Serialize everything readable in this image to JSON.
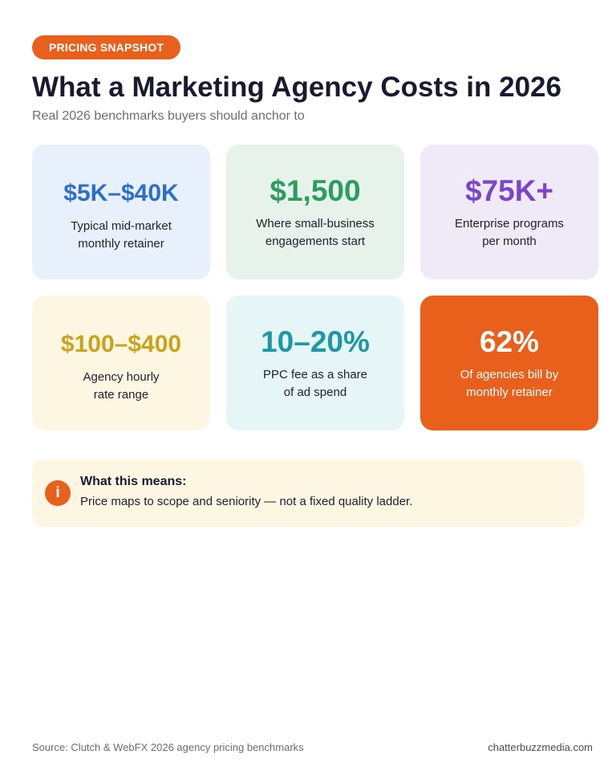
{
  "badge": "PRICING SNAPSHOT",
  "title": "What a Marketing Agency Costs in 2026",
  "subtitle": "Real 2026 benchmarks buyers should anchor to",
  "cards": [
    {
      "value": "$5K–$40K",
      "label_line1": "Typical mid-market",
      "label_line2": "monthly retainer",
      "color": "#2d6fcb",
      "bg": "#e7f0fb"
    },
    {
      "value": "$1,500",
      "label_line1": "Where small-business",
      "label_line2": "engagements start",
      "color": "#2e9b62",
      "bg": "#e7f2ea"
    },
    {
      "value": "$75K+",
      "label_line1": "Enterprise programs",
      "label_line2": "per month",
      "color": "#7a46c8",
      "bg": "#efe9f8"
    },
    {
      "value": "$100–$400",
      "label_line1": "Agency hourly",
      "label_line2": "rate range",
      "color": "#c9a21e",
      "bg": "#fcf6e3"
    },
    {
      "value": "10–20%",
      "label_line1": "PPC fee as a share",
      "label_line2": "of ad spend",
      "color": "#1d98a4",
      "bg": "#e6f5f5"
    },
    {
      "value": "62%",
      "label_line1": "Of agencies bill by",
      "label_line2": "monthly retainer",
      "color": "#ffffff",
      "bg": "#e8601c"
    }
  ],
  "note": {
    "icon": "info-icon",
    "icon_glyph": "i",
    "title": "What this means:",
    "text": "Price maps to scope and seniority — not a fixed quality ladder."
  },
  "footer": {
    "source": "Source: Clutch & WebFX 2026 agency pricing benchmarks",
    "site": "chatterbuzzmedia.com"
  },
  "accent_color": "#e8601c"
}
